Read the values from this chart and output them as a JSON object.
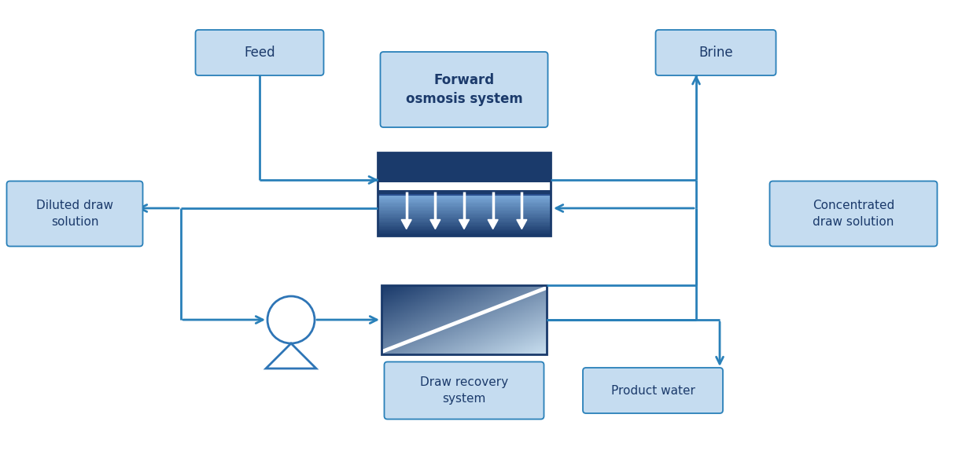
{
  "bg_color": "#ffffff",
  "line_color": "#2980B9",
  "box_fill": "#C5DCF0",
  "box_edge": "#2980B9",
  "dark_blue": "#1B3A6B",
  "mid_blue": "#2E75B6",
  "arrow_color": "#2980B9",
  "labels": {
    "feed": "Feed",
    "brine": "Brine",
    "fo_system": "Forward\nosmosis system",
    "diluted": "Diluted draw\nsolution",
    "concentrated": "Concentrated\ndraw solution",
    "draw_recovery": "Draw recovery\nsystem",
    "product_water": "Product water"
  },
  "figsize": [
    12.23,
    6.02
  ],
  "dpi": 100
}
